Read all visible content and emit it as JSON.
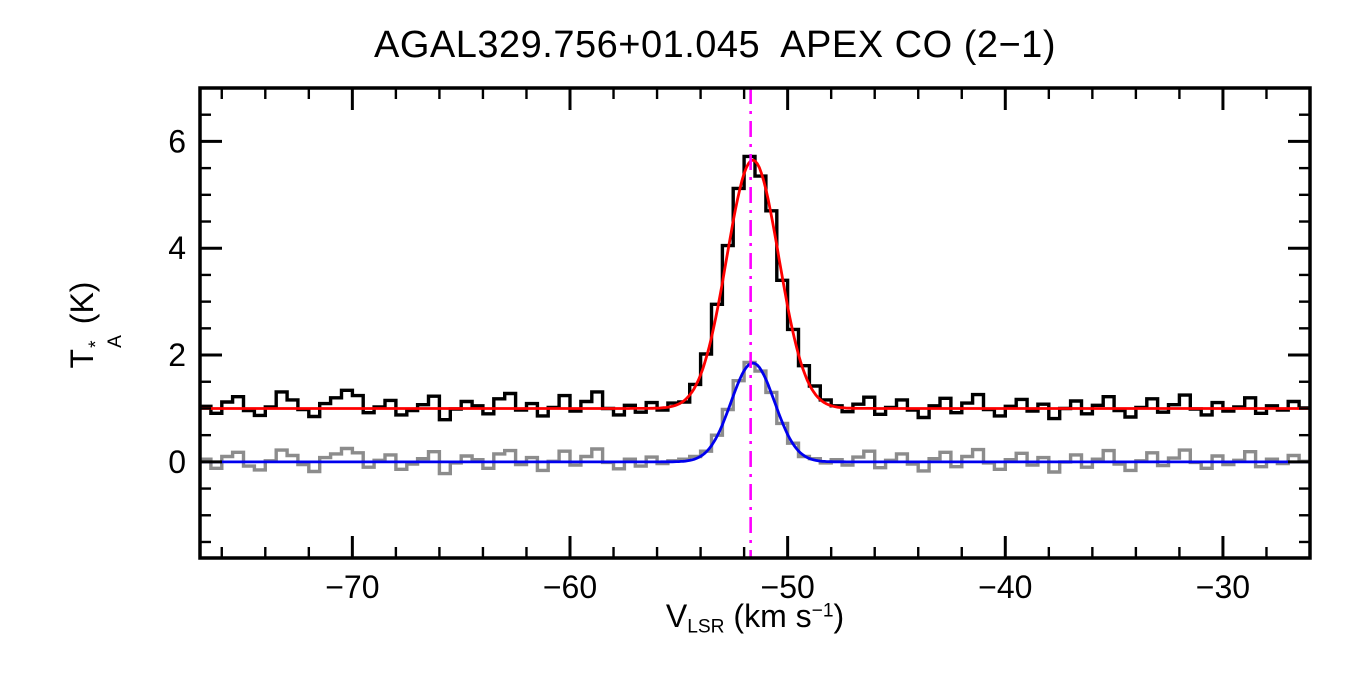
{
  "chart_data": {
    "type": "line",
    "title": "AGAL329.756+01.045  APEX CO (2−1)",
    "xlabel_parts": {
      "symbol": "V",
      "sub": "LSR",
      "unit_pre": " (km s",
      "sup": "−1",
      "unit_post": ")"
    },
    "ylabel_parts": {
      "symbol": "T",
      "sup": "*",
      "sub": "A",
      "unit": " (K)"
    },
    "xlim": [
      -77.0,
      -26.0
    ],
    "ylim": [
      -1.8,
      7.0
    ],
    "x_ticks": [
      -70,
      -60,
      -50,
      -40,
      -30
    ],
    "y_ticks": [
      0,
      2,
      4,
      6
    ],
    "x_minor_step": 2,
    "y_minor_step": 0.5,
    "x_start": -76.75,
    "x_step": 0.5,
    "grid": false,
    "legend": "none",
    "series": [
      {
        "name": "spectrum-black-offset",
        "style": "histogram",
        "color": "#000000",
        "line_width": 3.4,
        "baseline_offset": 1.0,
        "values": [
          1.04,
          0.91,
          1.12,
          1.22,
          0.96,
          0.87,
          1.03,
          1.31,
          1.16,
          0.98,
          0.85,
          1.09,
          1.2,
          1.34,
          1.24,
          0.92,
          1.03,
          1.15,
          0.88,
          0.96,
          1.07,
          1.23,
          0.79,
          0.99,
          1.13,
          1.05,
          0.9,
          1.18,
          1.28,
          0.97,
          1.09,
          0.86,
          1.02,
          1.24,
          0.95,
          1.13,
          1.31,
          1.0,
          0.88,
          1.06,
          0.93,
          1.11,
          0.97,
          1.1,
          1.12,
          1.45,
          2.02,
          2.95,
          4.05,
          5.12,
          5.72,
          5.35,
          4.7,
          3.4,
          2.48,
          1.8,
          1.42,
          1.16,
          1.05,
          0.94,
          1.08,
          1.21,
          0.89,
          1.02,
          1.16,
          0.97,
          0.83,
          1.05,
          1.19,
          0.92,
          1.1,
          1.26,
          0.98,
          0.86,
          1.04,
          1.17,
          0.95,
          1.08,
          0.81,
          1.0,
          1.14,
          0.9,
          1.06,
          1.22,
          0.96,
          0.84,
          1.02,
          1.18,
          0.93,
          1.07,
          1.25,
          0.99,
          0.88,
          1.11,
          0.95,
          1.03,
          1.2,
          0.91,
          1.05,
          0.97,
          1.13,
          1.01
        ]
      },
      {
        "name": "spectrum-gray",
        "style": "histogram",
        "color": "#8c8c8c",
        "line_width": 3.4,
        "baseline_offset": 0.0,
        "values": [
          0.05,
          -0.12,
          0.1,
          0.18,
          -0.08,
          -0.15,
          0.02,
          0.22,
          0.12,
          -0.05,
          -0.18,
          0.08,
          0.15,
          0.25,
          0.17,
          -0.1,
          0.03,
          0.13,
          -0.14,
          -0.04,
          0.06,
          0.19,
          -0.22,
          -0.02,
          0.11,
          0.04,
          -0.12,
          0.15,
          0.21,
          -0.05,
          0.08,
          -0.16,
          0.01,
          0.2,
          -0.06,
          0.1,
          0.24,
          -0.01,
          -0.13,
          0.05,
          -0.08,
          0.09,
          -0.03,
          0.02,
          0.05,
          0.1,
          0.2,
          0.5,
          0.98,
          1.52,
          1.86,
          1.7,
          1.3,
          0.72,
          0.35,
          0.1,
          0.06,
          -0.02,
          0.04,
          -0.06,
          0.09,
          0.2,
          -0.11,
          0.03,
          0.15,
          -0.04,
          -0.17,
          0.06,
          0.18,
          -0.09,
          0.1,
          0.23,
          -0.02,
          -0.14,
          0.04,
          0.16,
          -0.06,
          0.08,
          -0.19,
          0.0,
          0.13,
          -0.1,
          0.05,
          0.21,
          -0.04,
          -0.16,
          0.02,
          0.17,
          -0.07,
          0.07,
          0.22,
          -0.01,
          -0.12,
          0.11,
          -0.05,
          0.03,
          0.19,
          -0.09,
          0.05,
          -0.03,
          0.12,
          0.01
        ]
      },
      {
        "name": "gaussian-fit-red",
        "style": "gaussian",
        "color": "#ff0000",
        "line_width": 2.8,
        "baseline": 1.0,
        "amplitude": 4.65,
        "center": -51.6,
        "sigma": 1.2
      },
      {
        "name": "gaussian-fit-blue",
        "style": "gaussian",
        "color": "#0000ee",
        "line_width": 2.8,
        "baseline": 0.0,
        "amplitude": 1.85,
        "center": -51.6,
        "sigma": 1.0
      }
    ],
    "vline": {
      "x": -51.7,
      "color": "#ff00ff",
      "style": "dash-dot",
      "line_width": 2.6
    }
  }
}
